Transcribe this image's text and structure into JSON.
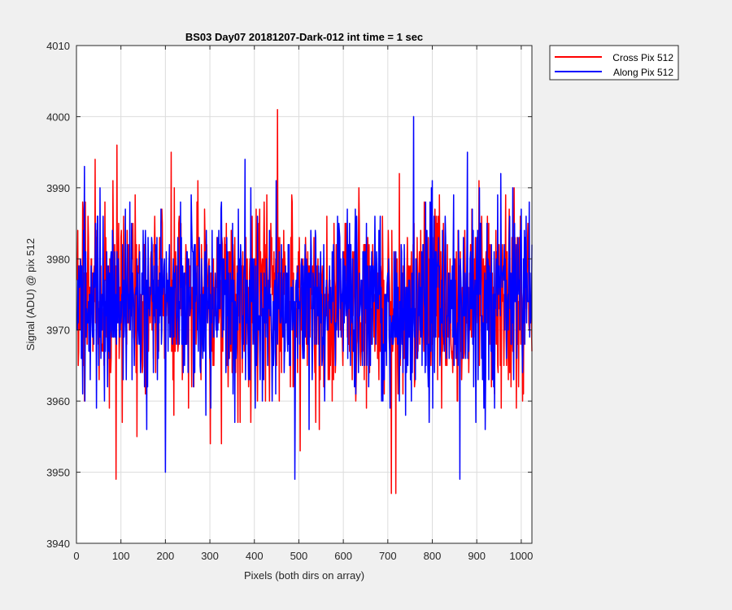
{
  "chart_data": {
    "type": "line",
    "title": "BS03 Day07 20181207-Dark-012 int time = 1 sec",
    "xlabel": "Pixels (both dirs on array)",
    "ylabel": "Signal (ADU) @ pix 512",
    "xlim": [
      0,
      1024
    ],
    "ylim": [
      3940,
      4010
    ],
    "xticks": [
      0,
      100,
      200,
      300,
      400,
      500,
      600,
      700,
      800,
      900,
      1000
    ],
    "yticks": [
      3940,
      3950,
      3960,
      3970,
      3980,
      3990,
      4000,
      4010
    ],
    "grid": true,
    "legend_position": "outside-top-right",
    "series": [
      {
        "name": "Cross Pix 512",
        "color": "#ff0000",
        "summary": {
          "n_points": 1024,
          "mean": 3974,
          "min": 3947,
          "max": 4001
        },
        "notable_points": [
          {
            "x": 90,
            "y": 3996
          },
          {
            "x": 212,
            "y": 3995
          },
          {
            "x": 451,
            "y": 4001
          },
          {
            "x": 707,
            "y": 3947
          },
          {
            "x": 717,
            "y": 3947
          },
          {
            "x": 88,
            "y": 3949
          }
        ]
      },
      {
        "name": "Along Pix 512",
        "color": "#0000ff",
        "summary": {
          "n_points": 1024,
          "mean": 3974,
          "min": 3949,
          "max": 4000
        },
        "notable_points": [
          {
            "x": 757,
            "y": 4000
          },
          {
            "x": 490,
            "y": 3949
          },
          {
            "x": 861,
            "y": 3949
          },
          {
            "x": 199,
            "y": 3950
          },
          {
            "x": 878,
            "y": 3995
          },
          {
            "x": 17,
            "y": 3993
          }
        ]
      }
    ]
  }
}
